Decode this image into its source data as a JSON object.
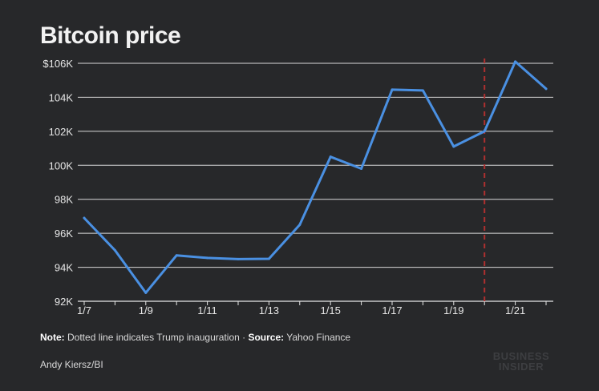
{
  "chart_data": {
    "type": "line",
    "title": "Bitcoin price",
    "xlabel": "",
    "ylabel": "",
    "x": [
      "1/7",
      "1/8",
      "1/9",
      "1/10",
      "1/11",
      "1/12",
      "1/13",
      "1/14",
      "1/15",
      "1/16",
      "1/17",
      "1/18",
      "1/19",
      "1/20",
      "1/21",
      "1/22"
    ],
    "x_tick_labels": [
      "1/7",
      "1/9",
      "1/11",
      "1/13",
      "1/15",
      "1/17",
      "1/19",
      "1/21"
    ],
    "series": [
      {
        "name": "Bitcoin price",
        "color": "#4a90e2",
        "values": [
          96900,
          95000,
          92500,
          94700,
          94550,
          94480,
          94500,
          96500,
          100500,
          99800,
          104450,
          104400,
          101100,
          102000,
          106100,
          104500
        ]
      }
    ],
    "ylim": [
      92000,
      106000
    ],
    "y_ticks": [
      92000,
      94000,
      96000,
      98000,
      100000,
      102000,
      104000,
      106000
    ],
    "y_tick_labels": [
      "92K",
      "94K",
      "96K",
      "98K",
      "100K",
      "102K",
      "104K",
      "$106K"
    ],
    "grid": true,
    "annotation": {
      "type": "vertical-dotted-line",
      "x": "1/20",
      "label": "Trump inauguration",
      "color": "#b03030"
    }
  },
  "title": "Bitcoin price",
  "footnote": {
    "note_label": "Note:",
    "note_text": " Dotted line indicates Trump inauguration · ",
    "source_label": "Source:",
    "source_text": " Yahoo Finance"
  },
  "credit": "Andy Kiersz/BI",
  "logo": {
    "line1": "BUSINESS",
    "line2": "INSIDER"
  }
}
